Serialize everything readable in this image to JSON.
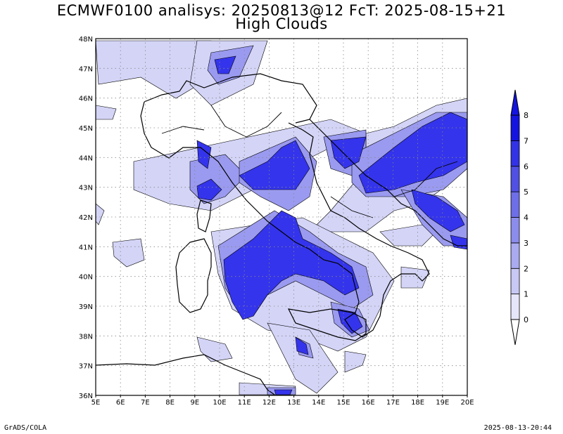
{
  "title_line1": "ECMWF0100 analisys: 20250813@12 FcT: 2025-08-15+21",
  "title_line2": "High Clouds",
  "footer_left": "GrADS/COLA",
  "footer_right": "2025-08-13-20:44",
  "axes": {
    "lon_labels": [
      "5E",
      "6E",
      "7E",
      "8E",
      "9E",
      "10E",
      "11E",
      "12E",
      "13E",
      "14E",
      "15E",
      "16E",
      "17E",
      "18E",
      "19E",
      "20E"
    ],
    "lat_labels": [
      "48N",
      "47N",
      "46N",
      "45N",
      "44N",
      "43N",
      "42N",
      "41N",
      "40N",
      "39N",
      "38N",
      "37N",
      "36N"
    ],
    "lon_range": [
      5,
      20
    ],
    "lat_range": [
      36,
      48
    ],
    "grid": "dotted"
  },
  "colorbar": {
    "labels": [
      "0",
      "1",
      "2",
      "3",
      "4",
      "5",
      "6",
      "7",
      "8"
    ],
    "colors": [
      "#ffffff",
      "#e6e6fa",
      "#c8c8f5",
      "#aaaaf0",
      "#8c8cec",
      "#6e6ee8",
      "#5050e4",
      "#3232e6",
      "#1414e0"
    ]
  },
  "colors": {
    "cloud_light": "#d4d4f7",
    "cloud_mid": "#9a9af0",
    "cloud_dense": "#3434ec",
    "coast": "#000000"
  }
}
